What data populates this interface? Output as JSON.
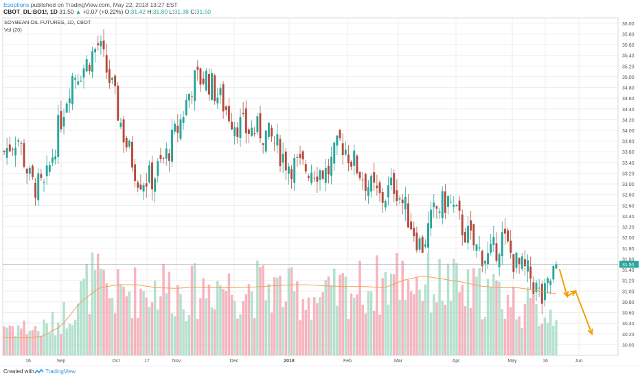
{
  "header": {
    "author": "Esoptions",
    "published_text": "published on TradingView.com, May 22, 2018 13:27 EST",
    "symbol": "CBOT_DL:BO1!, 1D",
    "last": "31.50",
    "change": "+0.07 (+0.22%)",
    "o_label": "O:",
    "o": "31.42",
    "h_label": "H:",
    "h": "31.80",
    "l_label": "L:",
    "l": "31.38",
    "c_label": "C:",
    "c": "31.50"
  },
  "footer": {
    "created_with": "Created with",
    "brand": "TradingView"
  },
  "colors": {
    "up": "#26a69a",
    "down": "#b34a3c",
    "vol_up": "#a8dcc6",
    "vol_down": "#f5a8b4",
    "ma": "#f0a050",
    "arrow": "#f2a000",
    "grid": "#eeeeee"
  },
  "chart_data": {
    "type": "candlestick",
    "title": "SOYBEAN OIL FUTURES, 1D, CBOT",
    "volume_label": "Vol (20)",
    "last_price_label": "31.50",
    "ylim": [
      29.8,
      36.1
    ],
    "y_ticks": [
      "36.00",
      "35.80",
      "35.60",
      "35.40",
      "35.20",
      "35.00",
      "34.80",
      "34.60",
      "34.40",
      "34.20",
      "34.00",
      "33.80",
      "33.60",
      "33.40",
      "33.20",
      "33.00",
      "32.80",
      "32.60",
      "32.40",
      "32.20",
      "32.00",
      "31.80",
      "31.60",
      "31.40",
      "31.20",
      "31.00",
      "30.80",
      "30.60",
      "30.40",
      "30.20",
      "30.00"
    ],
    "x_ticks": [
      "16",
      "Sep",
      "Oct",
      "17",
      "Nov",
      "Dec",
      "2018",
      "Feb",
      "Mar",
      "Apr",
      "May",
      "16",
      "Jun"
    ],
    "close_anchors": [
      33.6,
      33.9,
      33.0,
      32.9,
      34.0,
      35.0,
      35.2,
      35.6,
      34.8,
      33.8,
      33.1,
      33.1,
      33.5,
      34.1,
      34.9,
      35.0,
      34.6,
      34.2,
      34.0,
      34.0,
      33.8,
      33.4,
      33.3,
      33.3,
      33.2,
      33.8,
      33.4,
      33.0,
      32.7,
      33.0,
      32.4,
      31.8,
      32.5,
      32.7,
      32.2,
      31.8,
      31.6,
      32.0,
      31.5,
      31.3,
      30.8,
      31.5
    ],
    "volume_anchors": [
      5200,
      4800,
      4300,
      5600,
      9000,
      13000,
      10000,
      11000,
      11000,
      12000,
      10500,
      11000,
      12500,
      11000,
      11500,
      11500,
      10500,
      10000,
      9500,
      11000,
      11500,
      12000,
      13500,
      13000,
      12000,
      12000,
      10500,
      11000,
      10000,
      8500,
      7500,
      7000
    ],
    "ma_anchors": [
      3100,
      3000,
      3200,
      5000,
      9000,
      11500,
      12000,
      12000,
      11500,
      11400,
      11600,
      11500,
      11500,
      11600,
      11800,
      12000,
      12000,
      11800,
      11700,
      11700,
      11500,
      12800,
      13500,
      13000,
      12500,
      11800,
      11500,
      11500,
      11000,
      10500
    ],
    "volume_max": 21000,
    "forecast": {
      "segments": [
        [
          31.4,
          30.9
        ],
        [
          30.9,
          31.0
        ],
        [
          31.0,
          30.2
        ]
      ]
    }
  }
}
